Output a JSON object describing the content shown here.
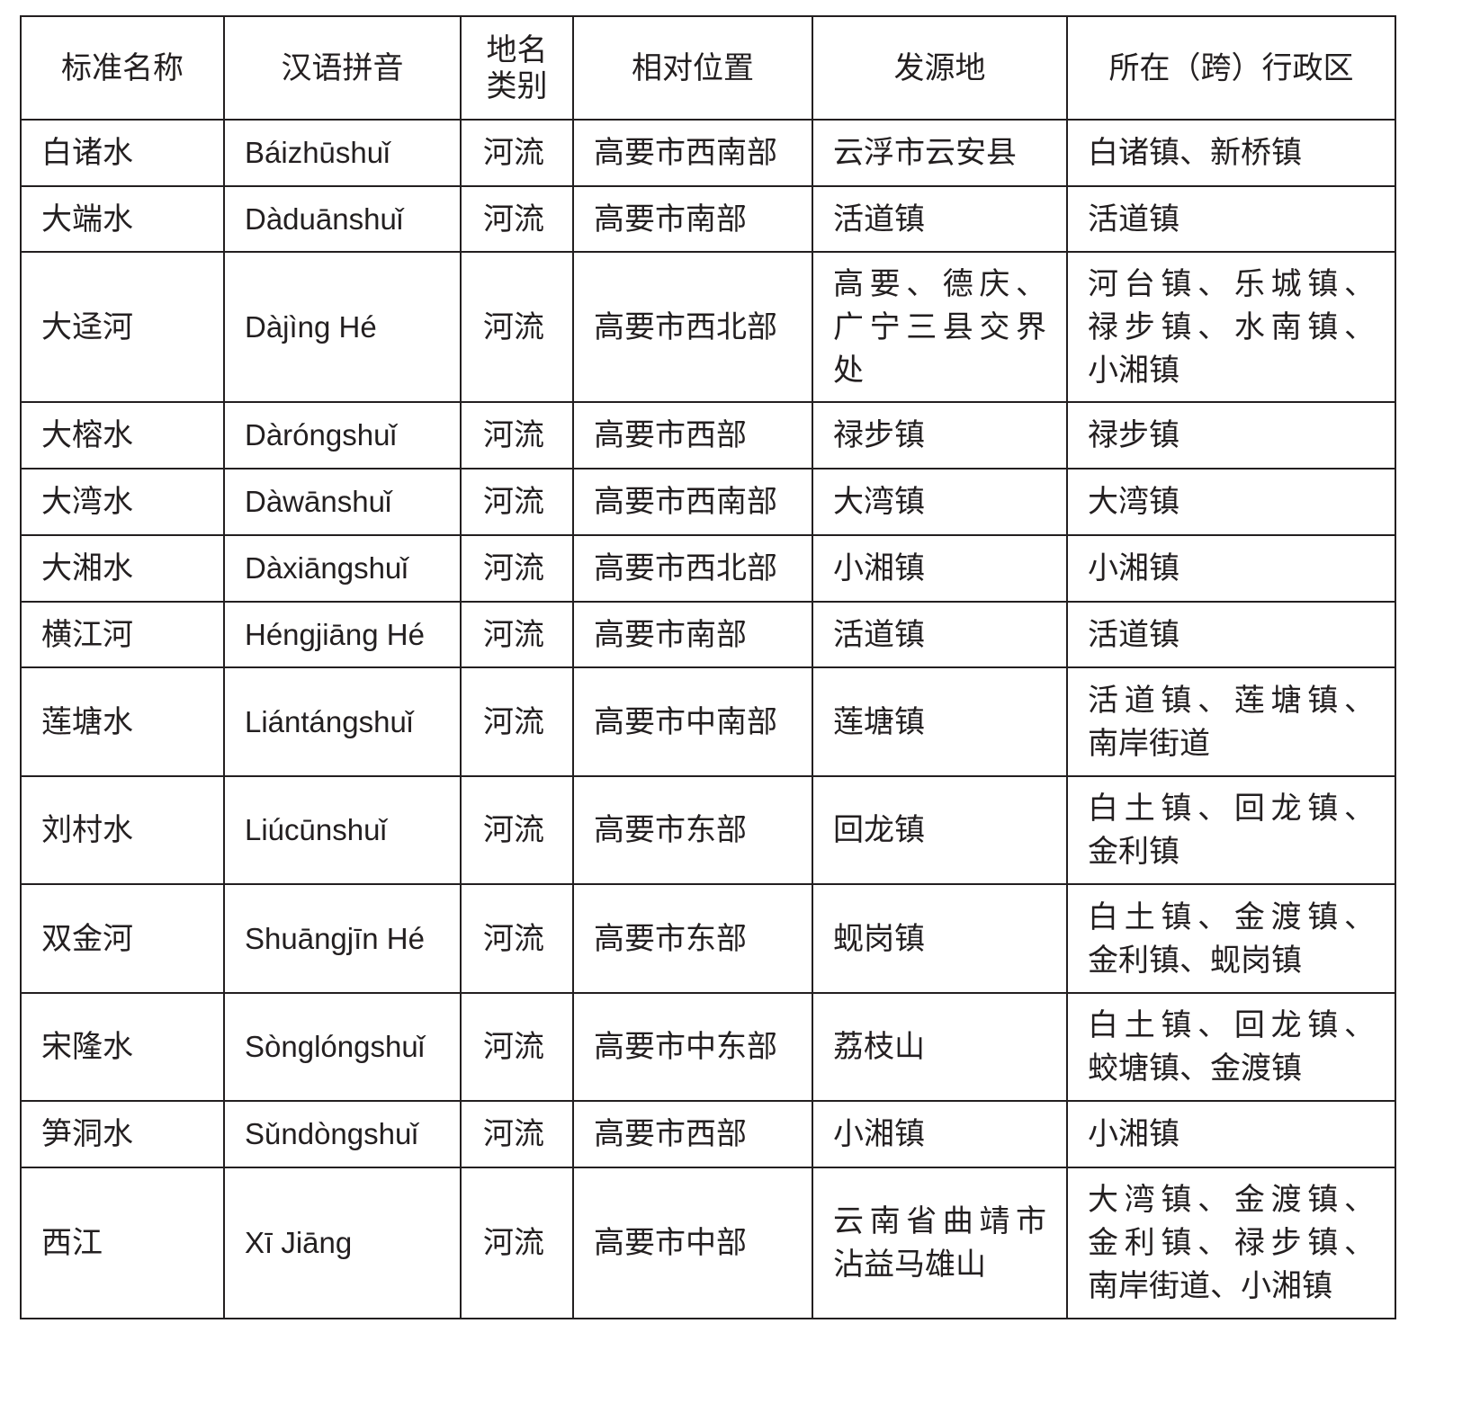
{
  "headers": [
    "标准名称",
    "汉语拼音",
    "地名\n类别",
    "相对位置",
    "发源地",
    "所在（跨）行政区"
  ],
  "rows": [
    {
      "name": "白诸水",
      "pinyin": "Báizhūshuǐ",
      "type": "河流",
      "position": "高要市西南部",
      "source": [
        "云浮市云安县"
      ],
      "region": [
        "白诸镇、新桥镇"
      ]
    },
    {
      "name": "大端水",
      "pinyin": "Dàduānshuǐ",
      "type": "河流",
      "position": "高要市南部",
      "source": [
        "活道镇"
      ],
      "region": [
        "活道镇"
      ]
    },
    {
      "name": "大迳河",
      "pinyin": "Dàjìng Hé",
      "type": "河流",
      "position": "高要市西北部",
      "source": [
        "高要、德庆、",
        "广宁三县交界",
        "处"
      ],
      "region": [
        "河台镇、乐城镇、",
        "禄步镇、水南镇、",
        "小湘镇"
      ]
    },
    {
      "name": "大榕水",
      "pinyin": "Dàróngshuǐ",
      "type": "河流",
      "position": "高要市西部",
      "source": [
        "禄步镇"
      ],
      "region": [
        "禄步镇"
      ]
    },
    {
      "name": "大湾水",
      "pinyin": "Dàwānshuǐ",
      "type": "河流",
      "position": "高要市西南部",
      "source": [
        "大湾镇"
      ],
      "region": [
        "大湾镇"
      ]
    },
    {
      "name": "大湘水",
      "pinyin": "Dàxiāngshuǐ",
      "type": "河流",
      "position": "高要市西北部",
      "source": [
        "小湘镇"
      ],
      "region": [
        "小湘镇"
      ]
    },
    {
      "name": "横江河",
      "pinyin": "Héngjiāng Hé",
      "type": "河流",
      "position": "高要市南部",
      "source": [
        "活道镇"
      ],
      "region": [
        "活道镇"
      ]
    },
    {
      "name": "莲塘水",
      "pinyin": "Liántángshuǐ",
      "type": "河流",
      "position": "高要市中南部",
      "source": [
        "莲塘镇"
      ],
      "region": [
        "活道镇、莲塘镇、",
        "南岸街道"
      ]
    },
    {
      "name": "刘村水",
      "pinyin": "Liúcūnshuǐ",
      "type": "河流",
      "position": "高要市东部",
      "source": [
        "回龙镇"
      ],
      "region": [
        "白土镇、回龙镇、",
        "金利镇"
      ]
    },
    {
      "name": "双金河",
      "pinyin": "Shuāngjīn Hé",
      "type": "河流",
      "position": "高要市东部",
      "source": [
        "蚬岗镇"
      ],
      "region": [
        "白土镇、金渡镇、",
        "金利镇、蚬岗镇"
      ]
    },
    {
      "name": "宋隆水",
      "pinyin": "Sònglóngshuǐ",
      "type": "河流",
      "position": "高要市中东部",
      "source": [
        "荔枝山"
      ],
      "region": [
        "白土镇、回龙镇、",
        "蛟塘镇、金渡镇"
      ]
    },
    {
      "name": "笋洞水",
      "pinyin": "Sǔndòngshuǐ",
      "type": "河流",
      "position": "高要市西部",
      "source": [
        "小湘镇"
      ],
      "region": [
        "小湘镇"
      ]
    },
    {
      "name": "西江",
      "pinyin": "Xī Jiāng",
      "type": "河流",
      "position": "高要市中部",
      "source": [
        "云南省曲靖市",
        "沾益马雄山"
      ],
      "region": [
        "大湾镇、金渡镇、",
        "金利镇、禄步镇、",
        "南岸街道、小湘镇"
      ]
    }
  ]
}
